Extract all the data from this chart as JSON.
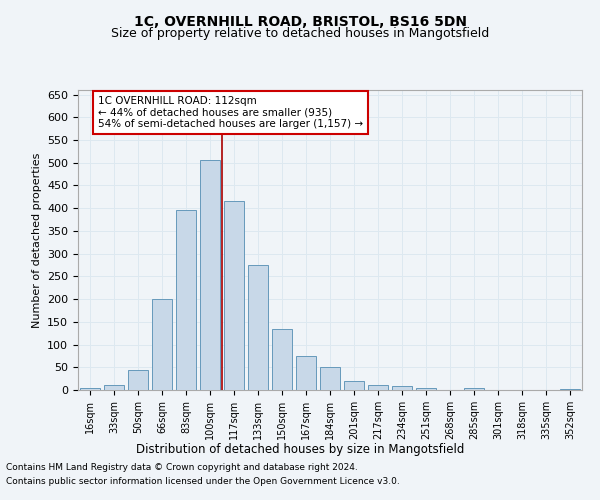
{
  "title1": "1C, OVERNHILL ROAD, BRISTOL, BS16 5DN",
  "title2": "Size of property relative to detached houses in Mangotsfield",
  "xlabel": "Distribution of detached houses by size in Mangotsfield",
  "ylabel": "Number of detached properties",
  "categories": [
    "16sqm",
    "33sqm",
    "50sqm",
    "66sqm",
    "83sqm",
    "100sqm",
    "117sqm",
    "133sqm",
    "150sqm",
    "167sqm",
    "184sqm",
    "201sqm",
    "217sqm",
    "234sqm",
    "251sqm",
    "268sqm",
    "285sqm",
    "301sqm",
    "318sqm",
    "335sqm",
    "352sqm"
  ],
  "values": [
    5,
    10,
    45,
    200,
    395,
    505,
    415,
    275,
    135,
    75,
    50,
    20,
    12,
    8,
    5,
    0,
    5,
    0,
    0,
    0,
    2
  ],
  "bar_color": "#c8d8e8",
  "bar_edge_color": "#6699bb",
  "vline_x": 5.5,
  "vline_color": "#aa0000",
  "annotation_line1": "1C OVERNHILL ROAD: 112sqm",
  "annotation_line2": "← 44% of detached houses are smaller (935)",
  "annotation_line3": "54% of semi-detached houses are larger (1,157) →",
  "annotation_box_color": "#ffffff",
  "annotation_box_edge": "#cc0000",
  "ylim": [
    0,
    660
  ],
  "yticks": [
    0,
    50,
    100,
    150,
    200,
    250,
    300,
    350,
    400,
    450,
    500,
    550,
    600,
    650
  ],
  "footnote1": "Contains HM Land Registry data © Crown copyright and database right 2024.",
  "footnote2": "Contains public sector information licensed under the Open Government Licence v3.0.",
  "grid_color": "#dde8f0",
  "bg_color": "#f0f4f8",
  "bar_width": 0.85,
  "title1_fontsize": 10,
  "title2_fontsize": 9
}
